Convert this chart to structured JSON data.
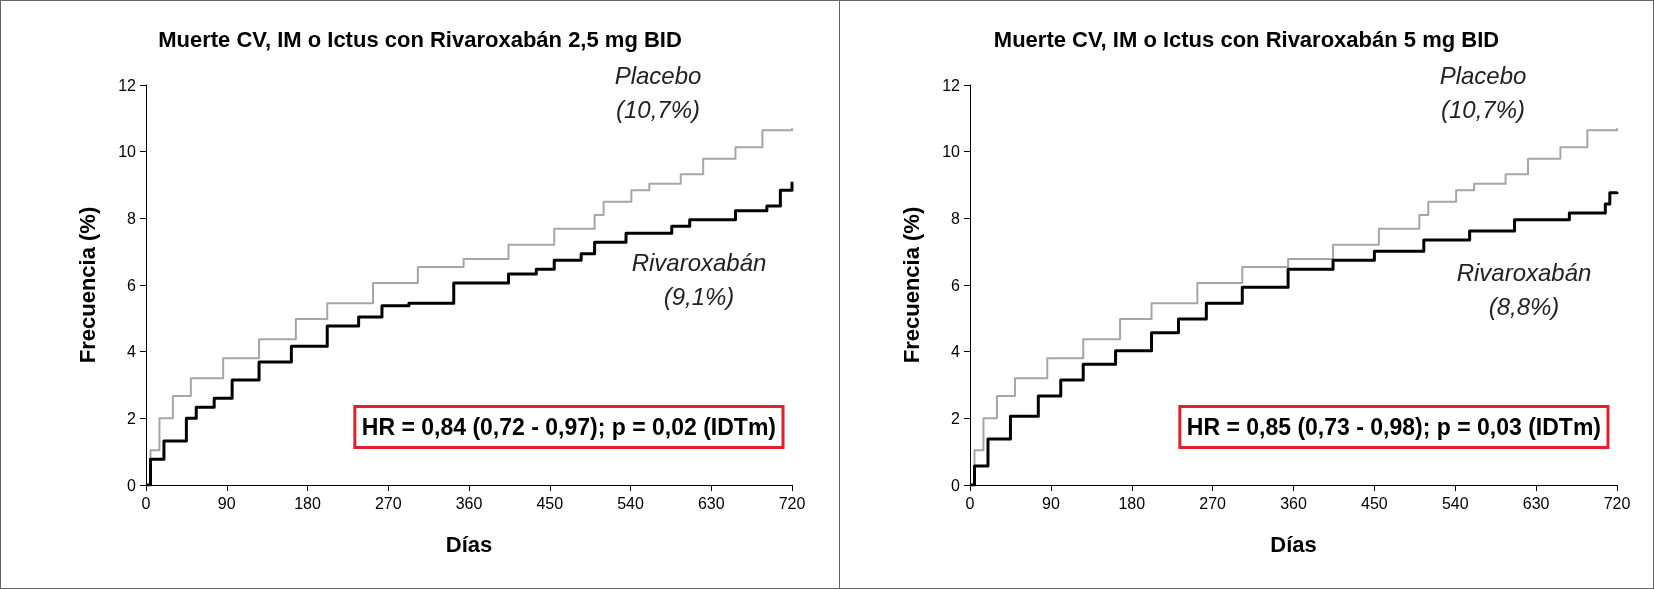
{
  "chart_data": [
    {
      "type": "step",
      "title": "Muerte CV, IM o Ictus con Rivaroxabán 2,5 mg BID",
      "xlabel": "Días",
      "ylabel": "Frecuencia (%)",
      "xlim": [
        0,
        720
      ],
      "xticks": [
        0,
        90,
        180,
        270,
        360,
        450,
        540,
        630,
        720
      ],
      "ylim": [
        0,
        12
      ],
      "yticks": [
        0,
        2,
        4,
        6,
        8,
        10,
        12
      ],
      "series": [
        {
          "name": "Placebo",
          "color": "#a6a6a6",
          "x": [
            0,
            5,
            15,
            30,
            50,
            86,
            126,
            167,
            202,
            253,
            303,
            354,
            404,
            455,
            500,
            510,
            541,
            561,
            596,
            621,
            657,
            687,
            720
          ],
          "values": [
            0,
            1.04,
            2.0,
            2.67,
            3.2,
            3.8,
            4.37,
            4.98,
            5.45,
            6.06,
            6.54,
            6.78,
            7.21,
            7.69,
            8.1,
            8.5,
            8.84,
            9.04,
            9.32,
            9.79,
            10.13,
            10.64,
            10.7
          ]
        },
        {
          "name": "Rivaroxabán",
          "color": "#000000",
          "x": [
            0,
            5,
            20,
            45,
            56,
            76,
            96,
            126,
            162,
            202,
            237,
            263,
            293,
            343,
            404,
            435,
            455,
            485,
            500,
            535,
            586,
            606,
            657,
            692,
            707,
            720
          ],
          "values": [
            0,
            0.77,
            1.32,
            2.0,
            2.33,
            2.6,
            3.15,
            3.69,
            4.16,
            4.77,
            5.04,
            5.38,
            5.45,
            6.06,
            6.33,
            6.47,
            6.74,
            6.94,
            7.28,
            7.55,
            7.76,
            7.96,
            8.23,
            8.37,
            8.84,
            9.1
          ]
        }
      ],
      "annotations": [
        "(10,7%)",
        "(9,1%)",
        "HR = 0,84 (0,72 - 0,97); p = 0,02 (IDTm)"
      ]
    },
    {
      "type": "step",
      "title": "Muerte CV, IM o Ictus con Rivaroxabán 5 mg BID",
      "xlabel": "Días",
      "ylabel": "Frecuencia (%)",
      "xlim": [
        0,
        720
      ],
      "xticks": [
        0,
        90,
        180,
        270,
        360,
        450,
        540,
        630,
        720
      ],
      "ylim": [
        0,
        12
      ],
      "yticks": [
        0,
        2,
        4,
        6,
        8,
        10,
        12
      ],
      "series": [
        {
          "name": "Placebo",
          "color": "#a6a6a6",
          "x": [
            0,
            5,
            15,
            30,
            50,
            86,
            126,
            167,
            202,
            253,
            303,
            354,
            404,
            455,
            500,
            510,
            541,
            561,
            596,
            621,
            657,
            687,
            720
          ],
          "values": [
            0,
            1.04,
            2.0,
            2.67,
            3.2,
            3.8,
            4.37,
            4.98,
            5.45,
            6.06,
            6.54,
            6.78,
            7.21,
            7.69,
            8.1,
            8.5,
            8.84,
            9.04,
            9.32,
            9.79,
            10.13,
            10.64,
            10.7
          ]
        },
        {
          "name": "Rivaroxabán",
          "color": "#000000",
          "x": [
            0,
            5,
            20,
            45,
            76,
            101,
            126,
            162,
            202,
            232,
            263,
            303,
            354,
            404,
            450,
            505,
            556,
            606,
            667,
            707,
            712,
            720
          ],
          "values": [
            0,
            0.57,
            1.38,
            2.06,
            2.67,
            3.15,
            3.62,
            4.03,
            4.57,
            4.98,
            5.45,
            5.93,
            6.47,
            6.74,
            7.01,
            7.35,
            7.62,
            7.96,
            8.16,
            8.43,
            8.77,
            8.8
          ]
        }
      ],
      "annotations": [
        "(10,7%)",
        "(8,8%)",
        "HR = 0,85 (0,73 - 0,98); p = 0,03 (IDTm)"
      ]
    }
  ]
}
